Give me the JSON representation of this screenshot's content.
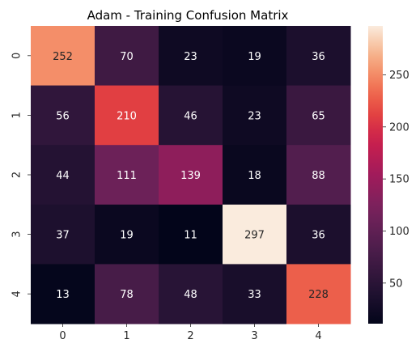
{
  "chart_data": {
    "type": "heatmap",
    "title": "Adam - Training Confusion Matrix",
    "xlabel": "",
    "ylabel": "",
    "x_categories": [
      "0",
      "1",
      "2",
      "3",
      "4"
    ],
    "y_categories": [
      "0",
      "1",
      "2",
      "3",
      "4"
    ],
    "values": [
      [
        252,
        70,
        23,
        19,
        36
      ],
      [
        56,
        210,
        46,
        23,
        65
      ],
      [
        44,
        111,
        139,
        18,
        88
      ],
      [
        37,
        19,
        11,
        297,
        36
      ],
      [
        13,
        78,
        48,
        33,
        228
      ]
    ],
    "colormap": "rocket",
    "color_range": [
      11,
      297
    ],
    "colorbar_ticks": [
      "50",
      "100",
      "150",
      "200",
      "250"
    ],
    "colorbar_tick_values": [
      50,
      100,
      150,
      200,
      250
    ],
    "annotations": true,
    "grid": false,
    "colors": {
      "text_light": "#ffffff",
      "text_dark": "#262626",
      "axis": "#262626"
    }
  }
}
